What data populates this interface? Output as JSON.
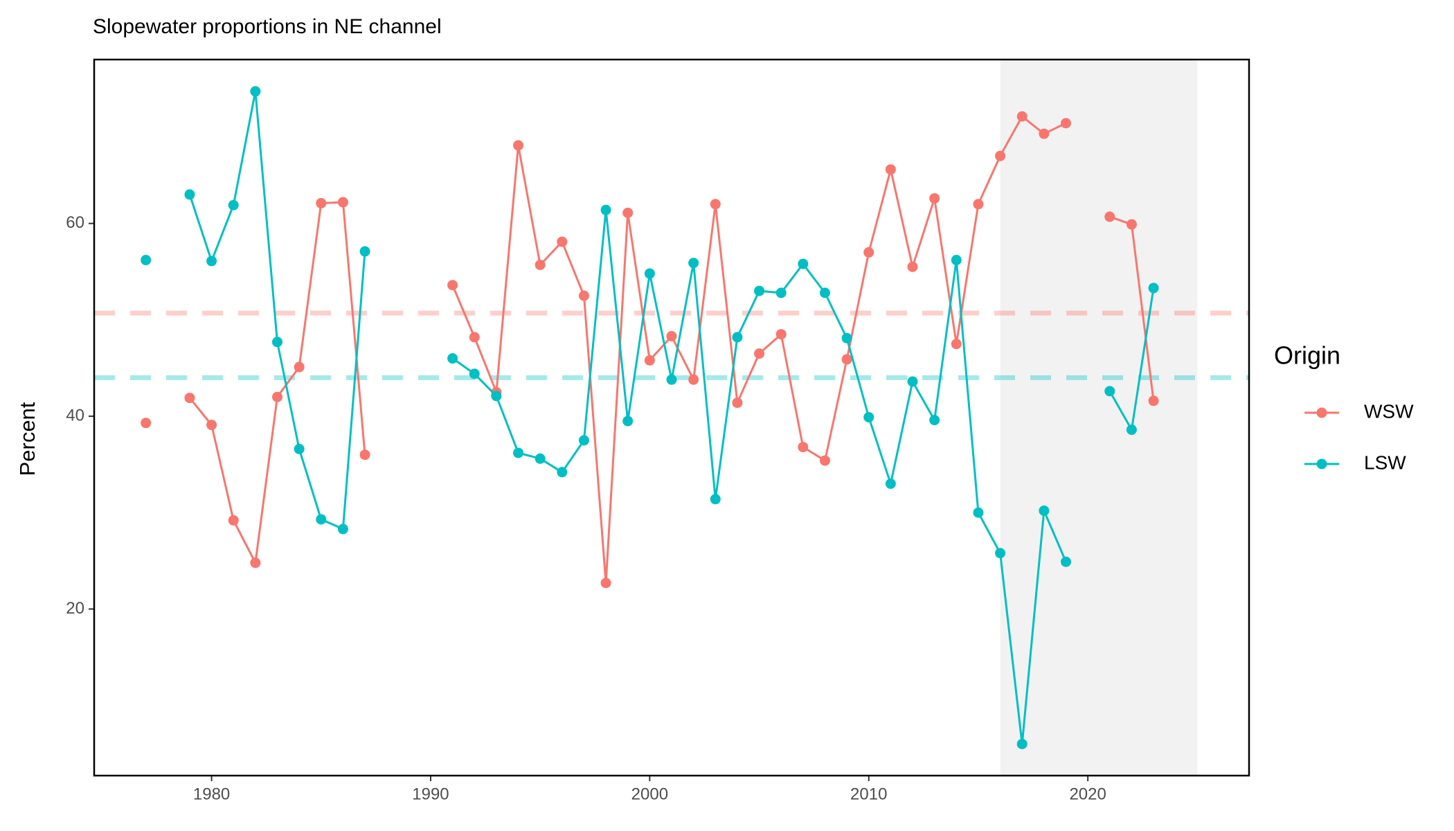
{
  "chart_data": {
    "type": "line",
    "title": "Slopewater proportions in NE channel",
    "y_label": "Percent",
    "legend_title": "Origin",
    "x": [
      1977,
      1978,
      1979,
      1980,
      1981,
      1982,
      1983,
      1984,
      1985,
      1986,
      1987,
      1988,
      1989,
      1990,
      1991,
      1992,
      1993,
      1994,
      1995,
      1996,
      1997,
      1998,
      1999,
      2000,
      2001,
      2002,
      2003,
      2004,
      2005,
      2006,
      2007,
      2008,
      2009,
      2010,
      2011,
      2012,
      2013,
      2014,
      2015,
      2016,
      2017,
      2018,
      2019,
      2020,
      2021,
      2022,
      2023
    ],
    "series": [
      {
        "name": "WSW",
        "color": "#f8766d",
        "values": [
          39.3,
          null,
          41.9,
          39.1,
          29.2,
          24.8,
          42.0,
          45.1,
          62.1,
          62.2,
          36.0,
          null,
          null,
          null,
          53.6,
          48.2,
          42.5,
          68.1,
          55.7,
          58.1,
          52.5,
          22.7,
          61.1,
          45.8,
          48.3,
          43.8,
          62.0,
          41.4,
          46.5,
          48.5,
          36.8,
          35.4,
          45.9,
          57.0,
          65.6,
          55.5,
          62.6,
          47.5,
          62.0,
          67.0,
          71.1,
          69.3,
          70.4,
          null,
          60.7,
          59.9,
          41.6
        ]
      },
      {
        "name": "LSW",
        "color": "#00bfc4",
        "values": [
          56.2,
          null,
          63.0,
          56.1,
          61.9,
          73.7,
          47.7,
          36.6,
          29.3,
          28.3,
          57.1,
          null,
          null,
          null,
          46.0,
          44.4,
          42.1,
          36.2,
          35.6,
          34.2,
          37.5,
          61.4,
          39.5,
          54.8,
          43.8,
          55.9,
          31.4,
          48.2,
          53.0,
          52.8,
          55.8,
          52.8,
          48.1,
          39.9,
          33.0,
          43.6,
          39.6,
          56.2,
          30.0,
          25.8,
          6.0,
          30.2,
          24.9,
          null,
          42.6,
          38.6,
          53.3
        ]
      }
    ],
    "reference_lines": [
      {
        "value": 50.7,
        "color": "#f8766d"
      },
      {
        "value": 44.0,
        "color": "#00bfc4"
      }
    ],
    "shaded_x": [
      2016,
      2025
    ],
    "xlim": [
      1974.64,
      2027.36
    ],
    "ylim": [
      2.72,
      77.0
    ],
    "xticks": [
      1980,
      1990,
      2000,
      2010,
      2020
    ],
    "yticks": [
      20,
      40,
      60
    ],
    "grid": false,
    "legend_position": "right"
  }
}
